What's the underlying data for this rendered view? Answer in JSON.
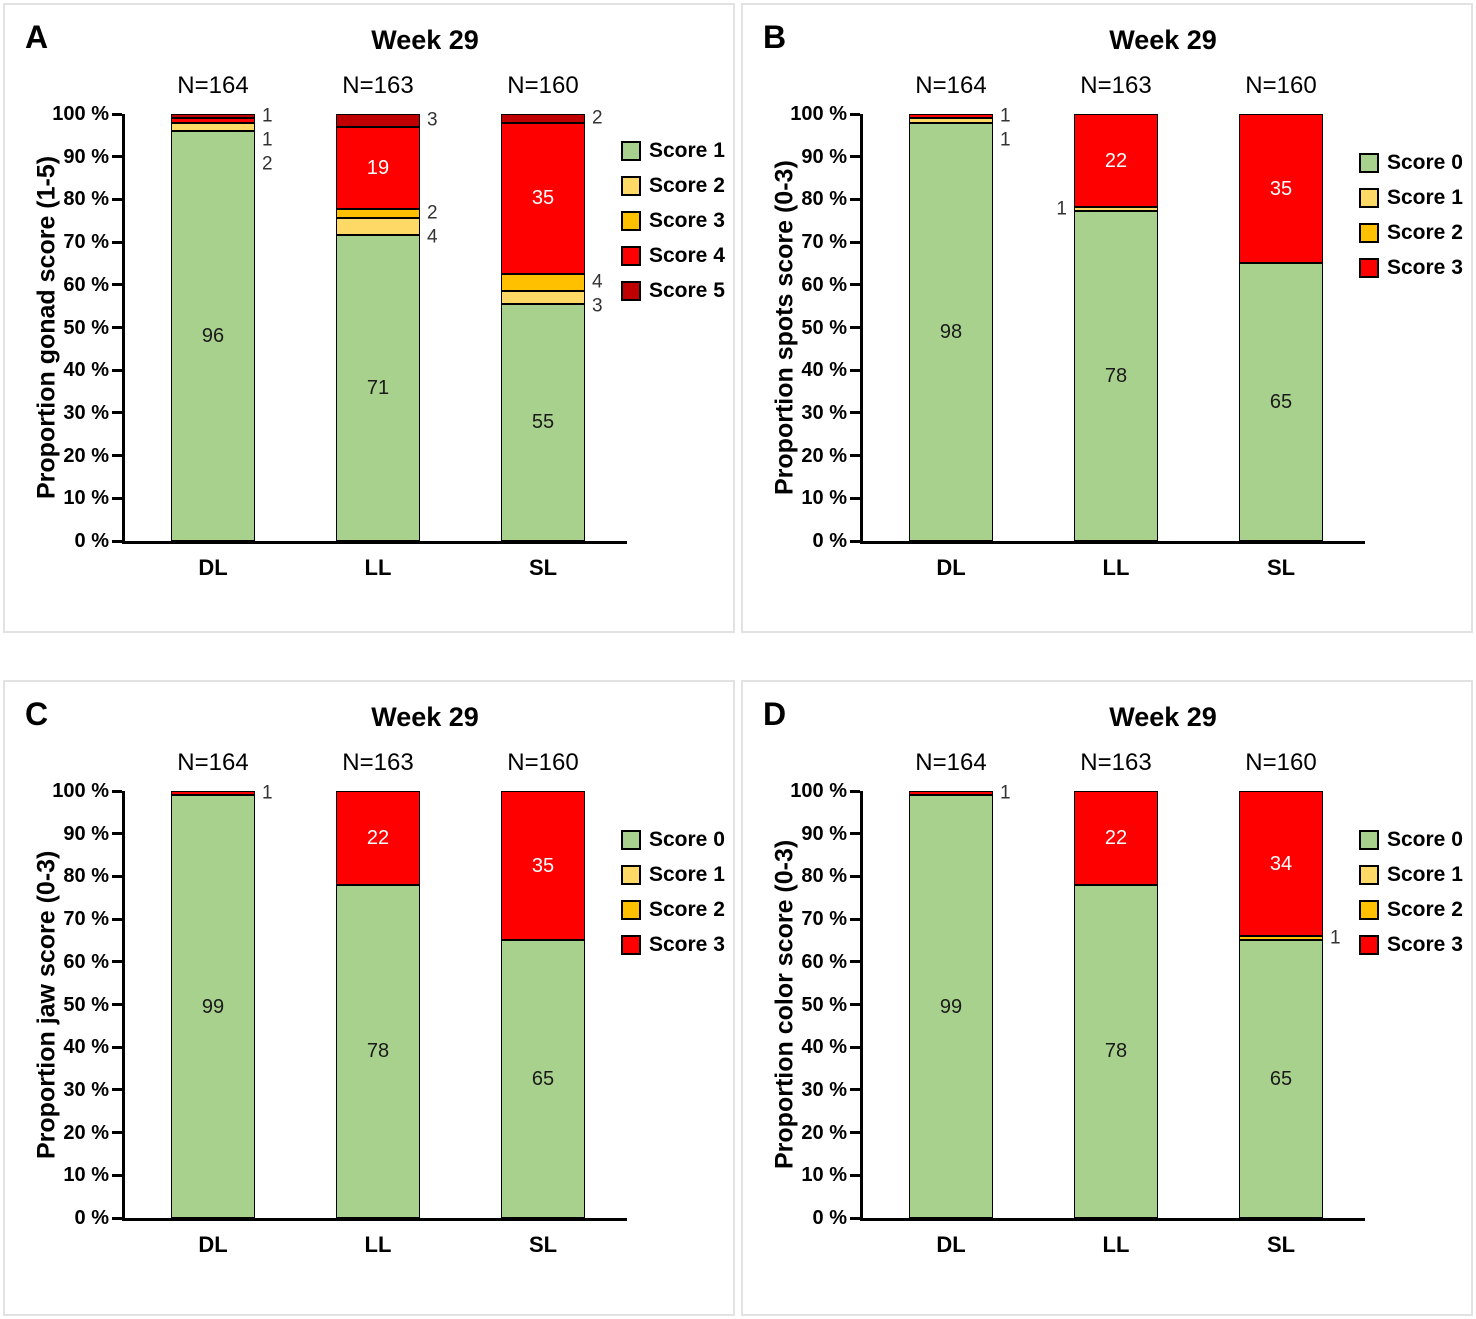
{
  "figure_title": "Four-panel stacked bar figure, Week 29 scores by light treatment",
  "chart_data": [
    {
      "type": "bar",
      "stacked": true,
      "panel_letter": "A",
      "title": "Week 29",
      "ylabel": "Proportion gonad score (1-5)",
      "ylim": [
        0,
        100
      ],
      "grid": false,
      "legend_position": "right",
      "y_ticks": [
        "0 %",
        "10 %",
        "20 %",
        "30 %",
        "40 %",
        "50 %",
        "60 %",
        "70 %",
        "80 %",
        "90 %",
        "100 %"
      ],
      "categories": [
        "DL",
        "LL",
        "SL"
      ],
      "n_labels": [
        "N=164",
        "N=163",
        "N=160"
      ],
      "legend": [
        {
          "label": "Score 1",
          "color": "#A9D18E"
        },
        {
          "label": "Score 2",
          "color": "#FFD966"
        },
        {
          "label": "Score 3",
          "color": "#FFC000"
        },
        {
          "label": "Score 4",
          "color": "#FF0000"
        },
        {
          "label": "Score 5",
          "color": "#C00000"
        }
      ],
      "bars": [
        {
          "category": "DL",
          "n": "N=164",
          "segments": [
            {
              "score": "Score 1",
              "value": 96,
              "label": "96",
              "label_side": "inside"
            },
            {
              "score": "Score 2",
              "value": 2,
              "label": "2",
              "label_side": "right"
            },
            {
              "score": "Score 4",
              "value": 1,
              "label": "1",
              "label_side": "right"
            },
            {
              "score": "Score 5",
              "value": 1,
              "label": "1",
              "label_side": "right"
            }
          ]
        },
        {
          "category": "LL",
          "n": "N=163",
          "segments": [
            {
              "score": "Score 1",
              "value": 71,
              "label": "71",
              "label_side": "inside"
            },
            {
              "score": "Score 2",
              "value": 4,
              "label": "4",
              "label_side": "right"
            },
            {
              "score": "Score 3",
              "value": 2,
              "label": "2",
              "label_side": "right"
            },
            {
              "score": "Score 4",
              "value": 19,
              "label": "19",
              "label_side": "inside"
            },
            {
              "score": "Score 5",
              "value": 3,
              "label": "3",
              "label_side": "right"
            }
          ]
        },
        {
          "category": "SL",
          "n": "N=160",
          "segments": [
            {
              "score": "Score 1",
              "value": 55,
              "label": "55",
              "label_side": "inside"
            },
            {
              "score": "Score 2",
              "value": 3,
              "label": "3",
              "label_side": "right"
            },
            {
              "score": "Score 3",
              "value": 4,
              "label": "4",
              "label_side": "right"
            },
            {
              "score": "Score 4",
              "value": 35,
              "label": "35",
              "label_side": "inside"
            },
            {
              "score": "Score 5",
              "value": 2,
              "label": "2",
              "label_side": "right"
            }
          ]
        }
      ]
    },
    {
      "type": "bar",
      "stacked": true,
      "panel_letter": "B",
      "title": "Week 29",
      "ylabel": "Proportion spots score (0-3)",
      "ylim": [
        0,
        100
      ],
      "grid": false,
      "legend_position": "right",
      "y_ticks": [
        "0 %",
        "10 %",
        "20 %",
        "30 %",
        "40 %",
        "50 %",
        "60 %",
        "70 %",
        "80 %",
        "90 %",
        "100 %"
      ],
      "categories": [
        "DL",
        "LL",
        "SL"
      ],
      "n_labels": [
        "N=164",
        "N=163",
        "N=160"
      ],
      "legend": [
        {
          "label": "Score 0",
          "color": "#A9D18E"
        },
        {
          "label": "Score 1",
          "color": "#FFD966"
        },
        {
          "label": "Score 2",
          "color": "#FFC000"
        },
        {
          "label": "Score 3",
          "color": "#FF0000"
        }
      ],
      "bars": [
        {
          "category": "DL",
          "n": "N=164",
          "segments": [
            {
              "score": "Score 0",
              "value": 98,
              "label": "98",
              "label_side": "inside"
            },
            {
              "score": "Score 1",
              "value": 1,
              "label": "1",
              "label_side": "right"
            },
            {
              "score": "Score 3",
              "value": 1,
              "label": "1",
              "label_side": "right"
            }
          ]
        },
        {
          "category": "LL",
          "n": "N=163",
          "segments": [
            {
              "score": "Score 0",
              "value": 78,
              "label": "78",
              "label_side": "inside"
            },
            {
              "score": "Score 1",
              "value": 1,
              "label": "1",
              "label_side": "left"
            },
            {
              "score": "Score 3",
              "value": 22,
              "label": "22",
              "label_side": "inside"
            }
          ]
        },
        {
          "category": "SL",
          "n": "N=160",
          "segments": [
            {
              "score": "Score 0",
              "value": 65,
              "label": "65",
              "label_side": "inside"
            },
            {
              "score": "Score 3",
              "value": 35,
              "label": "35",
              "label_side": "inside"
            }
          ]
        }
      ]
    },
    {
      "type": "bar",
      "stacked": true,
      "panel_letter": "C",
      "title": "Week 29",
      "ylabel": "Proportion jaw score (0-3)",
      "ylim": [
        0,
        100
      ],
      "grid": false,
      "legend_position": "right",
      "y_ticks": [
        "0 %",
        "10 %",
        "20 %",
        "30 %",
        "40 %",
        "50 %",
        "60 %",
        "70 %",
        "80 %",
        "90 %",
        "100 %"
      ],
      "categories": [
        "DL",
        "LL",
        "SL"
      ],
      "n_labels": [
        "N=164",
        "N=163",
        "N=160"
      ],
      "legend": [
        {
          "label": "Score 0",
          "color": "#A9D18E"
        },
        {
          "label": "Score 1",
          "color": "#FFD966"
        },
        {
          "label": "Score 2",
          "color": "#FFC000"
        },
        {
          "label": "Score 3",
          "color": "#FF0000"
        }
      ],
      "bars": [
        {
          "category": "DL",
          "n": "N=164",
          "segments": [
            {
              "score": "Score 0",
              "value": 99,
              "label": "99",
              "label_side": "inside"
            },
            {
              "score": "Score 3",
              "value": 1,
              "label": "1",
              "label_side": "right"
            }
          ]
        },
        {
          "category": "LL",
          "n": "N=163",
          "segments": [
            {
              "score": "Score 0",
              "value": 78,
              "label": "78",
              "label_side": "inside"
            },
            {
              "score": "Score 3",
              "value": 22,
              "label": "22",
              "label_side": "inside"
            }
          ]
        },
        {
          "category": "SL",
          "n": "N=160",
          "segments": [
            {
              "score": "Score 0",
              "value": 65,
              "label": "65",
              "label_side": "inside"
            },
            {
              "score": "Score 3",
              "value": 35,
              "label": "35",
              "label_side": "inside"
            }
          ]
        }
      ]
    },
    {
      "type": "bar",
      "stacked": true,
      "panel_letter": "D",
      "title": "Week 29",
      "ylabel": "Proportion color score (0-3)",
      "ylim": [
        0,
        100
      ],
      "grid": false,
      "legend_position": "right",
      "y_ticks": [
        "0 %",
        "10 %",
        "20 %",
        "30 %",
        "40 %",
        "50 %",
        "60 %",
        "70 %",
        "80 %",
        "90 %",
        "100 %"
      ],
      "categories": [
        "DL",
        "LL",
        "SL"
      ],
      "n_labels": [
        "N=164",
        "N=163",
        "N=160"
      ],
      "legend": [
        {
          "label": "Score 0",
          "color": "#A9D18E"
        },
        {
          "label": "Score 1",
          "color": "#FFD966"
        },
        {
          "label": "Score 2",
          "color": "#FFC000"
        },
        {
          "label": "Score 3",
          "color": "#FF0000"
        }
      ],
      "bars": [
        {
          "category": "DL",
          "n": "N=164",
          "segments": [
            {
              "score": "Score 0",
              "value": 99,
              "label": "99",
              "label_side": "inside"
            },
            {
              "score": "Score 3",
              "value": 1,
              "label": "1",
              "label_side": "right"
            }
          ]
        },
        {
          "category": "LL",
          "n": "N=163",
          "segments": [
            {
              "score": "Score 0",
              "value": 78,
              "label": "78",
              "label_side": "inside"
            },
            {
              "score": "Score 3",
              "value": 22,
              "label": "22",
              "label_side": "inside"
            }
          ]
        },
        {
          "category": "SL",
          "n": "N=160",
          "segments": [
            {
              "score": "Score 0",
              "value": 65,
              "label": "65",
              "label_side": "inside"
            },
            {
              "score": "Score 2",
              "value": 1,
              "label": "1",
              "label_side": "right"
            },
            {
              "score": "Score 3",
              "value": 34,
              "label": "34",
              "label_side": "inside"
            }
          ]
        }
      ]
    }
  ]
}
